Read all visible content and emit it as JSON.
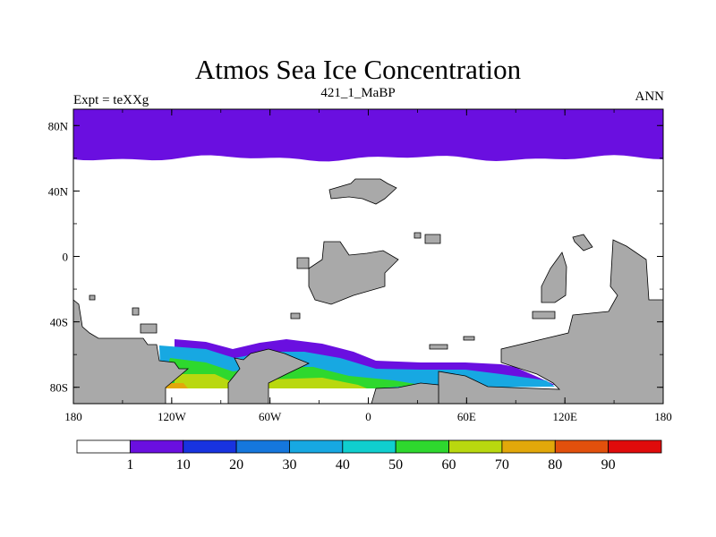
{
  "chart_data": {
    "type": "heatmap",
    "title": "Atmos Sea Ice Concentration",
    "subtitle_left": "Expt = teXXg",
    "subtitle_center": "421_1_MaBP",
    "subtitle_right": "ANN",
    "xlabel": "",
    "ylabel": "",
    "x_ticks": [
      "180",
      "120W",
      "60W",
      "0",
      "60E",
      "120E",
      "180"
    ],
    "x_tick_values": [
      -180,
      -120,
      -60,
      0,
      60,
      120,
      180
    ],
    "y_ticks": [
      "80N",
      "40N",
      "0",
      "40S",
      "80S"
    ],
    "y_tick_values": [
      80,
      40,
      0,
      -40,
      -80
    ],
    "xlim": [
      -180,
      180
    ],
    "ylim": [
      -90,
      90
    ],
    "colorbar": {
      "levels": [
        "1",
        "10",
        "20",
        "30",
        "40",
        "50",
        "60",
        "70",
        "80",
        "90"
      ],
      "colors": [
        "#ffffff",
        "#6a0fe0",
        "#1833e0",
        "#1577dd",
        "#17a8e2",
        "#10cfcf",
        "#2ed82e",
        "#b9d80f",
        "#e2a80a",
        "#e2500c",
        "#e00b0b"
      ]
    },
    "northern_ice_edge_lat": 60,
    "land_color": "#a9a9a9",
    "units": "%"
  }
}
